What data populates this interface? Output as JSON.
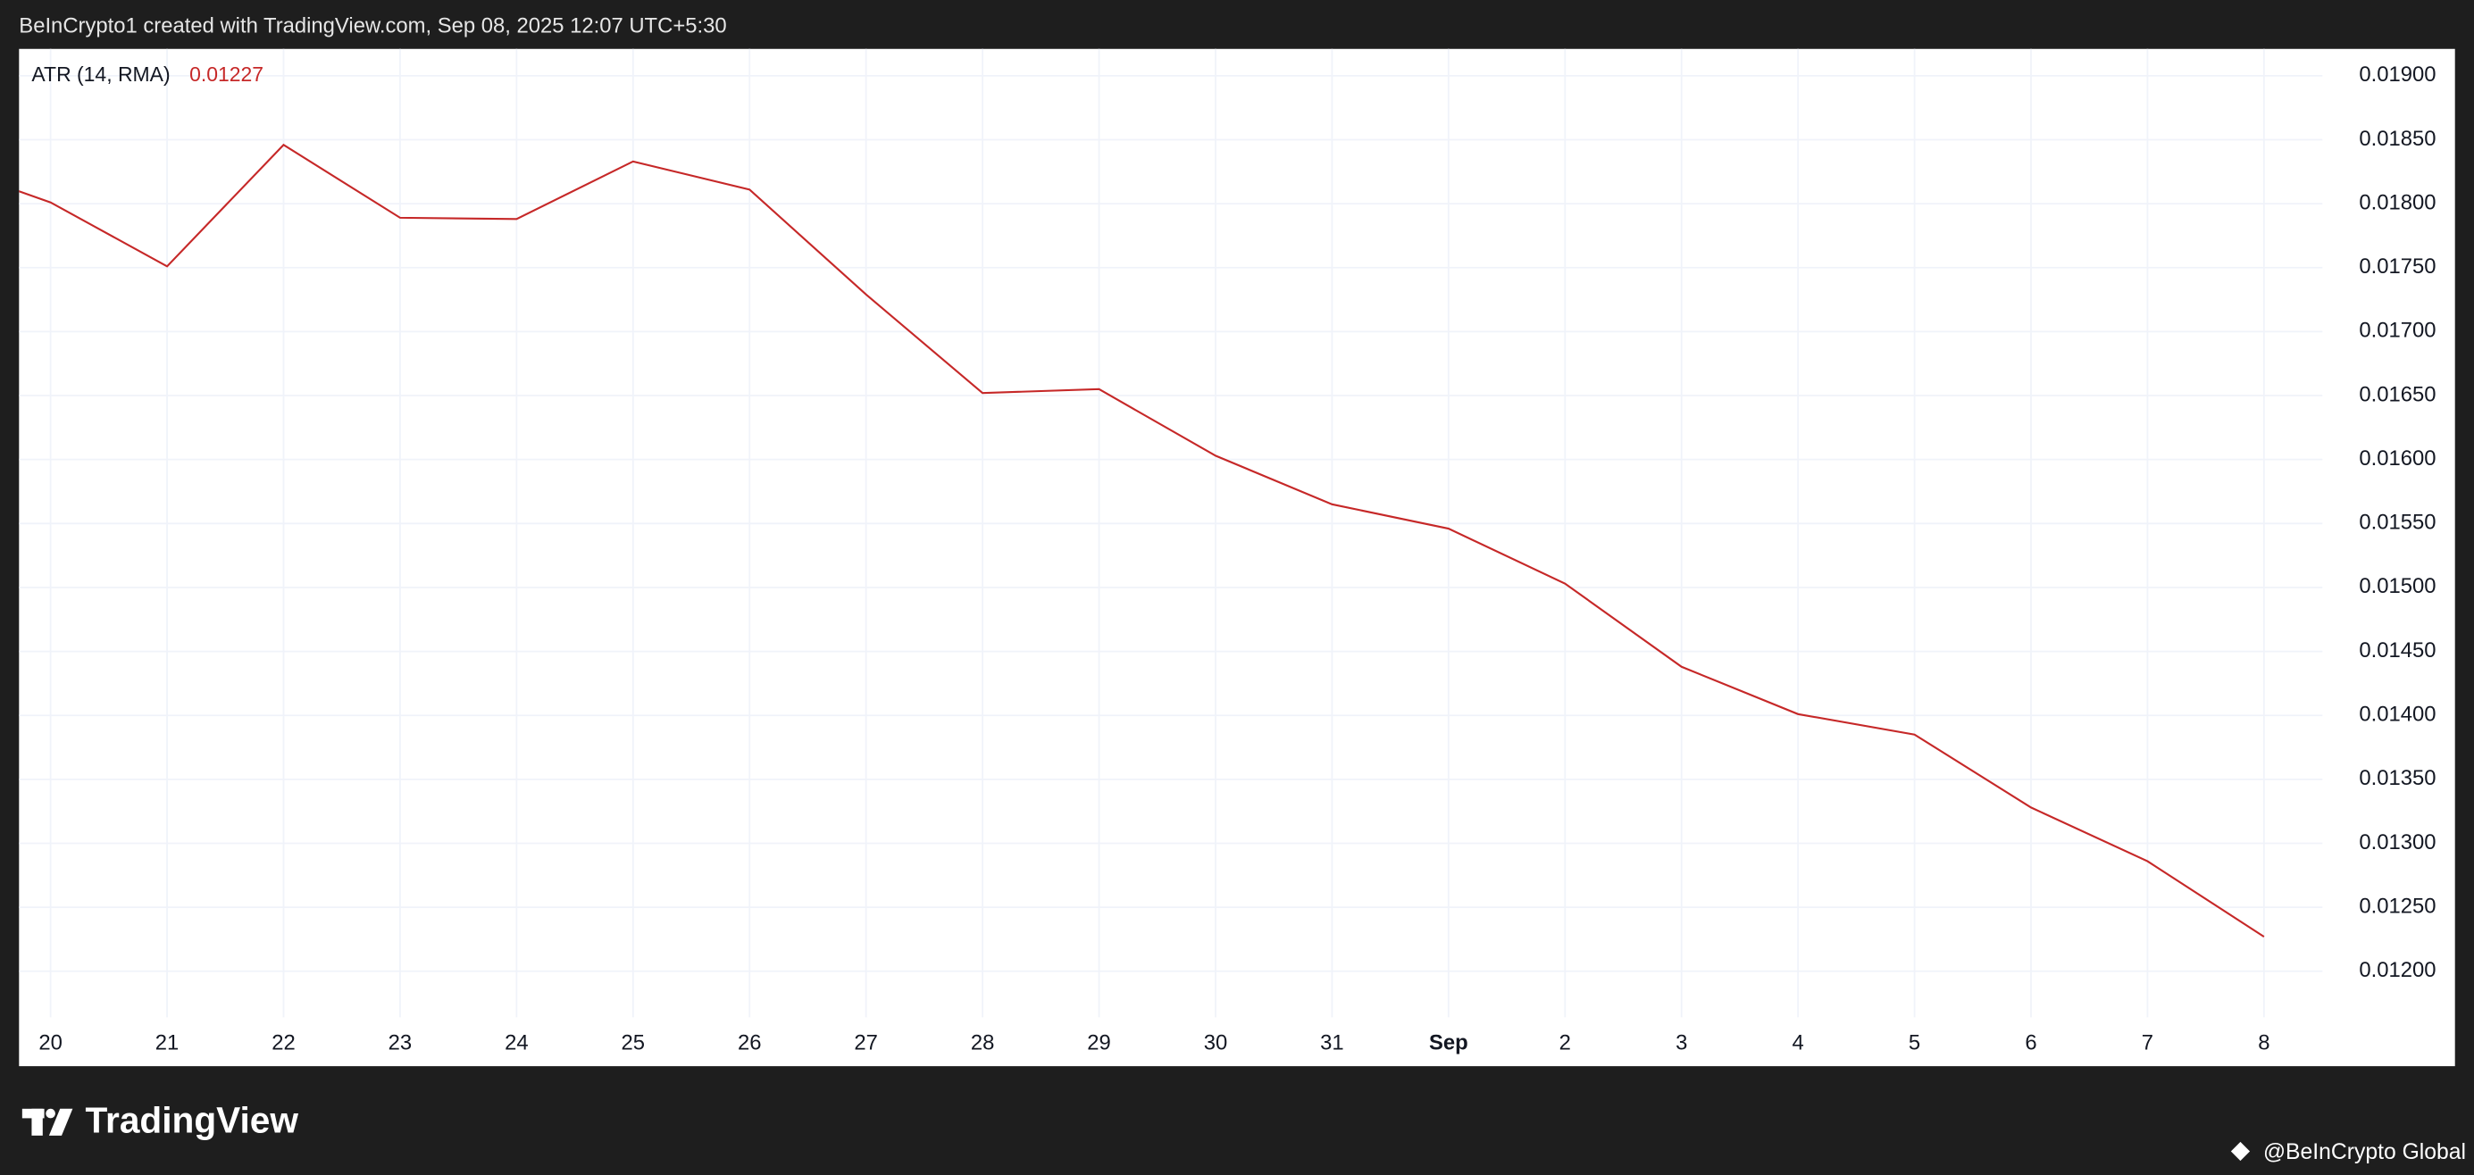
{
  "header": "BeInCrypto1 created with TradingView.com, Sep 08, 2025 12:07 UTC+5:30",
  "chart_data": {
    "type": "line",
    "categories": [
      null,
      "20",
      "21",
      "22",
      "23",
      "24",
      "25",
      "26",
      "27",
      "28",
      "29",
      "30",
      "31",
      "Sep",
      "2",
      "3",
      "4",
      "5",
      "6",
      "7",
      "8"
    ],
    "series": [
      {
        "name": "ATR (14, RMA)",
        "color": "#c62828",
        "values": [
          0.01833,
          0.01801,
          0.01751,
          0.01846,
          0.01789,
          0.01788,
          0.01833,
          0.01811,
          0.01729,
          0.01652,
          0.01655,
          0.01603,
          0.01565,
          0.01546,
          0.01503,
          0.01438,
          0.01401,
          0.01385,
          0.01328,
          0.01286,
          0.01227
        ]
      }
    ],
    "ylim": [
      0.01164,
      0.01921
    ],
    "yticks": [
      {
        "value": 0.012,
        "label": "0.01200"
      },
      {
        "value": 0.0125,
        "label": "0.01250"
      },
      {
        "value": 0.013,
        "label": "0.01300"
      },
      {
        "value": 0.0135,
        "label": "0.01350"
      },
      {
        "value": 0.014,
        "label": "0.01400"
      },
      {
        "value": 0.0145,
        "label": "0.01450"
      },
      {
        "value": 0.015,
        "label": "0.01500"
      },
      {
        "value": 0.0155,
        "label": "0.01550"
      },
      {
        "value": 0.016,
        "label": "0.01600"
      },
      {
        "value": 0.0165,
        "label": "0.01650"
      },
      {
        "value": 0.017,
        "label": "0.01700"
      },
      {
        "value": 0.0175,
        "label": "0.01750"
      },
      {
        "value": 0.018,
        "label": "0.01800"
      },
      {
        "value": 0.0185,
        "label": "0.01850"
      },
      {
        "value": 0.019,
        "label": "0.01900"
      }
    ],
    "grid": true
  },
  "footer": {
    "logo": "TradingView",
    "credit": "@BeInCrypto Global"
  }
}
